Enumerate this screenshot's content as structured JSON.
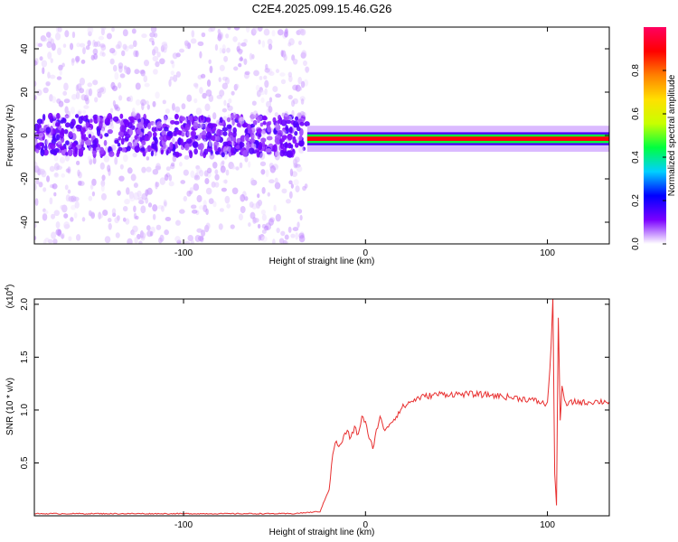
{
  "title": "C2E4.2025.099.15.46.G26",
  "chart_data": [
    {
      "type": "heatmap",
      "xlabel": "Height of straight line (km)",
      "ylabel": "Frequency (Hz)",
      "xlim": [
        -182,
        134
      ],
      "ylim": [
        -50,
        50
      ],
      "xticks": [
        -100,
        0,
        100
      ],
      "xtick_labels": [
        "-100",
        "0",
        "100"
      ],
      "yticks": [
        -40,
        -20,
        0,
        20,
        40
      ],
      "ytick_labels": [
        "-40",
        "-20",
        "0",
        "20",
        "40"
      ],
      "colorbar": {
        "label": "Normalized spectral amplitude",
        "range": [
          0.0,
          1.0
        ],
        "ticks": [
          0.0,
          0.2,
          0.4,
          0.6,
          0.8
        ],
        "tick_labels": [
          "0.0",
          "0.2",
          "0.4",
          "0.6",
          "0.8"
        ],
        "colors": [
          "#ffffff",
          "#7a00ff",
          "#0000ff",
          "#00d0ff",
          "#00ff40",
          "#c8ff00",
          "#ffe000",
          "#ff8000",
          "#ff0000",
          "#ff0060"
        ]
      },
      "regions": [
        {
          "x_range": [
            -182,
            -32
          ],
          "description_values": {
            "center_freq": 0,
            "core_halfwidth": 9,
            "scatter_halfwidth": 50,
            "amplitude": 0.08
          }
        },
        {
          "x_range": [
            -32,
            134
          ],
          "description_values": {
            "center_freq": -1.5,
            "core_halfwidth": 2,
            "amplitude": 0.9
          }
        }
      ],
      "grid": false
    },
    {
      "type": "line",
      "xlabel": "Height of straight line (km)",
      "ylabel": "SNR (10 * v/v)",
      "y_multiplier_label": "(x10",
      "y_multiplier_exp": "4",
      "y_multiplier_suffix": ")",
      "xlim": [
        -182,
        134
      ],
      "ylim": [
        0,
        2.05
      ],
      "xticks": [
        -100,
        0,
        100
      ],
      "xtick_labels": [
        "-100",
        "0",
        "100"
      ],
      "yticks": [
        0.5,
        1.0,
        1.5,
        2.0
      ],
      "ytick_labels": [
        "0.5",
        "1.0",
        "1.5",
        "2.0"
      ],
      "series": [
        {
          "color": "#e83030",
          "x": [
            -182,
            -150,
            -100,
            -60,
            -40,
            -25,
            -20,
            -18,
            -16,
            -14,
            -12,
            -10,
            -8,
            -6,
            -4,
            -2,
            0,
            2,
            4,
            6,
            8,
            10,
            12,
            15,
            20,
            25,
            30,
            40,
            50,
            60,
            70,
            80,
            90,
            95,
            100,
            102,
            103,
            104,
            105,
            106,
            107,
            108,
            110,
            115,
            120,
            125,
            134
          ],
          "y": [
            0.02,
            0.02,
            0.02,
            0.02,
            0.02,
            0.04,
            0.25,
            0.6,
            0.7,
            0.65,
            0.75,
            0.8,
            0.72,
            0.85,
            0.75,
            0.95,
            0.88,
            0.72,
            0.65,
            0.8,
            0.95,
            0.8,
            0.85,
            0.9,
            1.02,
            1.08,
            1.12,
            1.15,
            1.15,
            1.15,
            1.14,
            1.12,
            1.1,
            1.08,
            1.05,
            1.6,
            2.05,
            0.4,
            0.1,
            1.9,
            0.9,
            1.2,
            1.05,
            1.08,
            1.07,
            1.08,
            1.08
          ]
        }
      ],
      "grid": false
    }
  ]
}
